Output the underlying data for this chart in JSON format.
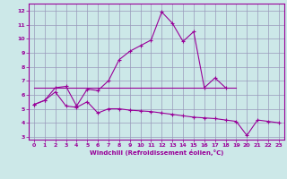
{
  "xlabel": "Windchill (Refroidissement éolien,°C)",
  "bg_color": "#cce8e8",
  "grid_color": "#9999bb",
  "line_color": "#990099",
  "xlim": [
    -0.5,
    23.5
  ],
  "ylim": [
    2.8,
    12.5
  ],
  "xticks": [
    0,
    1,
    2,
    3,
    4,
    5,
    6,
    7,
    8,
    9,
    10,
    11,
    12,
    13,
    14,
    15,
    16,
    17,
    18,
    19,
    20,
    21,
    22,
    23
  ],
  "yticks": [
    3,
    4,
    5,
    6,
    7,
    8,
    9,
    10,
    11,
    12
  ],
  "line1_x": [
    0,
    1,
    2,
    3,
    4,
    5,
    6,
    7,
    8,
    9,
    10,
    11,
    12,
    13,
    14,
    15,
    16,
    17,
    18
  ],
  "line1_y": [
    5.3,
    5.6,
    6.5,
    6.6,
    5.2,
    6.4,
    6.3,
    7.0,
    8.5,
    9.1,
    9.5,
    9.9,
    11.9,
    11.1,
    9.8,
    10.5,
    6.5,
    7.2,
    6.5
  ],
  "line2_x": [
    0,
    1,
    2,
    3,
    4,
    5,
    6,
    7,
    8,
    9,
    10,
    11,
    12,
    13,
    14,
    15,
    16,
    17,
    18,
    19,
    20,
    21,
    22,
    23
  ],
  "line2_y": [
    5.3,
    5.6,
    6.2,
    5.2,
    5.1,
    5.5,
    4.7,
    5.0,
    5.0,
    4.9,
    4.85,
    4.8,
    4.7,
    4.6,
    4.5,
    4.4,
    4.35,
    4.3,
    4.2,
    4.1,
    3.1,
    4.2,
    4.1,
    4.0
  ],
  "line3_x": [
    0,
    19
  ],
  "line3_y": [
    6.5,
    6.5
  ]
}
